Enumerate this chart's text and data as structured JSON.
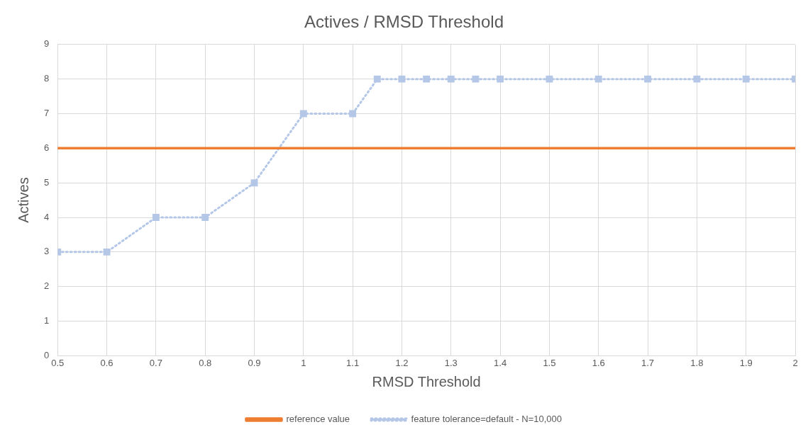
{
  "chart_data": {
    "type": "line",
    "title": "Actives / RMSD Threshold",
    "xlabel": "RMSD Threshold",
    "ylabel": "Actives",
    "xlim": [
      0.5,
      2
    ],
    "xticks": [
      0.5,
      0.6,
      0.7,
      0.8,
      0.9,
      1,
      1.1,
      1.2,
      1.3,
      1.4,
      1.5,
      1.6,
      1.7,
      1.8,
      1.9,
      2
    ],
    "ylim": [
      0,
      9
    ],
    "yticks": [
      0,
      1,
      2,
      3,
      4,
      5,
      6,
      7,
      8,
      9
    ],
    "grid": true,
    "legend": "bottom",
    "series": [
      {
        "name": "reference value",
        "color": "#ed7d31",
        "x": [
          0.5,
          2
        ],
        "values": [
          6,
          6
        ],
        "marker": "none",
        "line_style": "solid"
      },
      {
        "name": "feature tolerance=default - N=10,000",
        "color": "#b4c7e7",
        "x": [
          0.5,
          0.6,
          0.7,
          0.8,
          0.9,
          1,
          1.1,
          1.15,
          1.2,
          1.25,
          1.3,
          1.35,
          1.4,
          1.5,
          1.6,
          1.7,
          1.8,
          1.9,
          2
        ],
        "values": [
          3,
          3,
          4,
          4,
          5,
          7,
          7,
          8,
          8,
          8,
          8,
          8,
          8,
          8,
          8,
          8,
          8,
          8,
          8
        ],
        "marker": "square",
        "line_style": "dotted"
      }
    ]
  }
}
